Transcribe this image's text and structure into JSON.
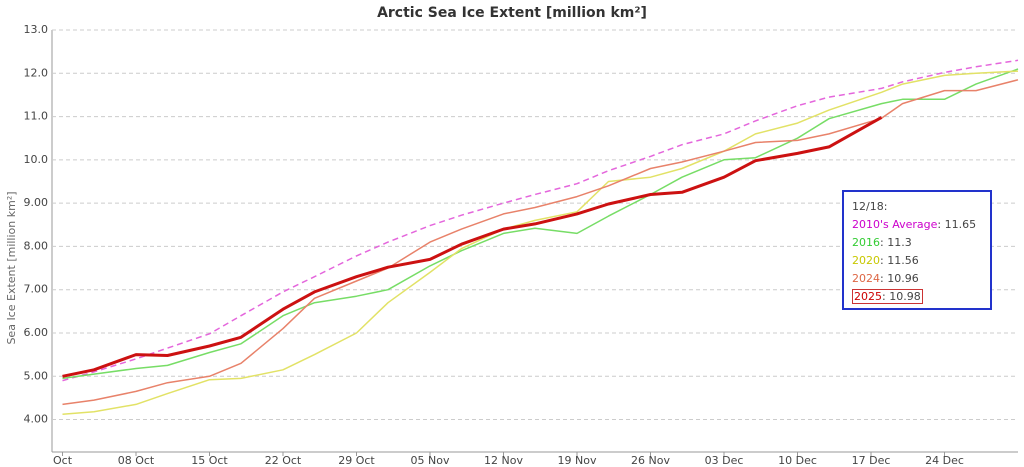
{
  "chart_data": {
    "type": "line",
    "title": "Arctic Sea Ice Extent [million km²]",
    "y_label": "Sea Ice Extent [million km²]",
    "x": [
      "01 Oct",
      "04 Oct",
      "08 Oct",
      "11 Oct",
      "15 Oct",
      "18 Oct",
      "22 Oct",
      "25 Oct",
      "29 Oct",
      "01 Nov",
      "05 Nov",
      "08 Nov",
      "12 Nov",
      "15 Nov",
      "19 Nov",
      "22 Nov",
      "26 Nov",
      "29 Nov",
      "03 Dec",
      "06 Dec",
      "10 Dec",
      "13 Dec",
      "18 Dec",
      "20 Dec",
      "24 Dec",
      "27 Dec",
      "31 Dec"
    ],
    "xlim": [
      "30 Sep",
      "31 Dec"
    ],
    "xticks": [
      {
        "value": "01 Oct",
        "label": "Oct"
      },
      "08 Oct",
      "15 Oct",
      "22 Oct",
      "29 Oct",
      "05 Nov",
      "12 Nov",
      "19 Nov",
      "26 Nov",
      "03 Dec",
      "10 Dec",
      "17 Dec",
      "24 Dec"
    ],
    "ylim": [
      3.25,
      13
    ],
    "yticks": [
      {
        "value": 4,
        "label": "4.00"
      },
      {
        "value": 5,
        "label": "5.00"
      },
      {
        "value": 6,
        "label": "6.00"
      },
      {
        "value": 7,
        "label": "7.00"
      },
      {
        "value": 8,
        "label": "8.00"
      },
      {
        "value": 9,
        "label": "9.00"
      },
      {
        "value": 10,
        "label": "10.0"
      },
      {
        "value": 11,
        "label": "11.0"
      },
      {
        "value": 12,
        "label": "12.0"
      },
      {
        "value": 13,
        "label": "13.0"
      }
    ],
    "grid": true,
    "legend_title": "12/18:",
    "series": [
      {
        "name": "2010's Average",
        "color": "#e466dc",
        "label_color": "#cc00cc",
        "dashed": true,
        "latest": 11.65,
        "values": [
          4.9,
          5.1,
          5.4,
          5.65,
          5.98,
          6.4,
          6.95,
          7.3,
          7.78,
          8.1,
          8.48,
          8.72,
          9.0,
          9.2,
          9.45,
          9.75,
          10.08,
          10.35,
          10.6,
          10.9,
          11.25,
          11.45,
          11.65,
          11.8,
          12.02,
          12.15,
          12.3
        ]
      },
      {
        "name": "2016",
        "color": "#77dd66",
        "label_color": "#33cc33",
        "latest": 11.3,
        "values": [
          4.95,
          5.05,
          5.18,
          5.25,
          5.55,
          5.75,
          6.4,
          6.7,
          6.85,
          7.0,
          7.55,
          7.9,
          8.3,
          8.42,
          8.3,
          8.7,
          9.2,
          9.6,
          10.0,
          10.05,
          10.5,
          10.95,
          11.3,
          11.4,
          11.4,
          11.75,
          12.1
        ]
      },
      {
        "name": "2020",
        "color": "#e2e266",
        "label_color": "#c8c800",
        "latest": 11.56,
        "values": [
          4.12,
          4.18,
          4.35,
          4.6,
          4.92,
          4.95,
          5.15,
          5.5,
          6.0,
          6.7,
          7.4,
          7.95,
          8.4,
          8.6,
          8.8,
          9.5,
          9.6,
          9.8,
          10.2,
          10.6,
          10.85,
          11.15,
          11.56,
          11.75,
          11.95,
          12.0,
          12.05
        ]
      },
      {
        "name": "2024",
        "color": "#e8826a",
        "label_color": "#dd6644",
        "latest": 10.96,
        "values": [
          4.35,
          4.45,
          4.65,
          4.85,
          5.0,
          5.3,
          6.1,
          6.8,
          7.2,
          7.5,
          8.1,
          8.4,
          8.75,
          8.9,
          9.15,
          9.4,
          9.8,
          9.95,
          10.2,
          10.4,
          10.45,
          10.6,
          10.96,
          11.3,
          11.6,
          11.6,
          11.85
        ]
      },
      {
        "name": "2025",
        "color": "#cc1111",
        "label_color": "#cc0000",
        "width": 3,
        "boxed": true,
        "latest": 10.98,
        "values": [
          5.0,
          5.15,
          5.5,
          5.48,
          5.7,
          5.9,
          6.55,
          6.95,
          7.3,
          7.52,
          7.7,
          8.05,
          8.4,
          8.52,
          8.75,
          8.98,
          9.2,
          9.25,
          9.6,
          9.98,
          10.15,
          10.3,
          10.98,
          null,
          null,
          null,
          null
        ]
      }
    ]
  }
}
